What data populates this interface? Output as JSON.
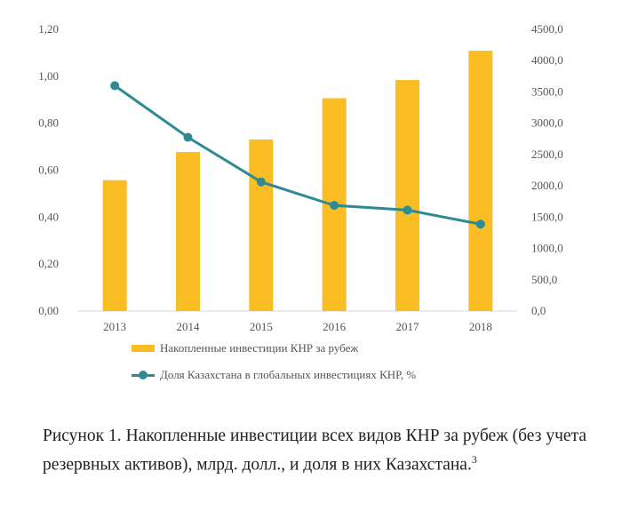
{
  "chart_data": {
    "type": "bar+line",
    "categories": [
      "2013",
      "2014",
      "2015",
      "2016",
      "2017",
      "2018"
    ],
    "series": [
      {
        "name": "Накопленные инвестиции КНР за рубеж",
        "type": "bar",
        "axis": "right",
        "values": [
          2090,
          2540,
          2740,
          3400,
          3690,
          4160
        ]
      },
      {
        "name": "Доля Казахстана в глобальных инвестициях  КНР, %",
        "type": "line",
        "axis": "left",
        "values": [
          0.96,
          0.74,
          0.55,
          0.45,
          0.43,
          0.37
        ]
      }
    ],
    "left_axis": {
      "min": 0,
      "max": 1.2,
      "step": 0.2,
      "ticks": [
        "0,00",
        "0,20",
        "0,40",
        "0,60",
        "0,80",
        "1,00",
        "1,20"
      ]
    },
    "right_axis": {
      "min": 0,
      "max": 4500,
      "step": 500,
      "ticks": [
        "0,0",
        "500,0",
        "1000,0",
        "1500,0",
        "2000,0",
        "2500,0",
        "3000,0",
        "3500,0",
        "4000,0",
        "4500,0"
      ]
    },
    "legend_position": "bottom",
    "grid": false
  },
  "colors": {
    "bar": "#fbbd24",
    "line": "#2e8b93",
    "axis": "#d9d9d9"
  },
  "caption": {
    "text": "Рисунок 1. Накопленные инвестиции всех видов КНР за рубеж (без учета резервных активов), млрд. долл., и доля в них Казахстана.",
    "footnote": "3"
  }
}
